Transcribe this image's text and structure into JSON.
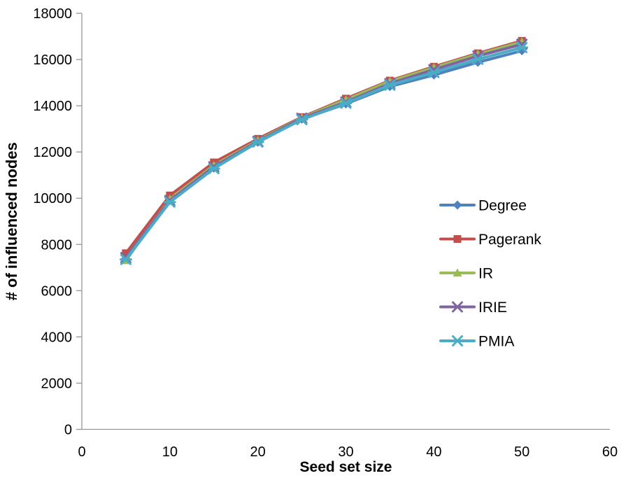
{
  "chart_data": {
    "type": "line",
    "title": "",
    "xlabel": "Seed set size",
    "ylabel": "# of influenced nodes",
    "xlim": [
      0,
      60
    ],
    "ylim": [
      0,
      18000
    ],
    "xticks": [
      0,
      10,
      20,
      30,
      40,
      50,
      60
    ],
    "yticks": [
      0,
      2000,
      4000,
      6000,
      8000,
      10000,
      12000,
      14000,
      16000,
      18000
    ],
    "grid": false,
    "legend_position": "right-middle",
    "x": [
      5,
      10,
      15,
      20,
      25,
      30,
      35,
      40,
      45,
      50
    ],
    "series": [
      {
        "name": "Degree",
        "color": "#4F81BD",
        "marker": "diamond",
        "values": [
          7400,
          9900,
          11300,
          12420,
          13420,
          14080,
          14830,
          15330,
          15880,
          16380
        ]
      },
      {
        "name": "Pagerank",
        "color": "#C0504D",
        "marker": "square",
        "values": [
          7620,
          10120,
          11550,
          12570,
          13510,
          14310,
          15090,
          15690,
          16270,
          16810
        ]
      },
      {
        "name": "IR",
        "color": "#9BBB59",
        "marker": "triangle",
        "values": [
          7300,
          9960,
          11420,
          12500,
          13480,
          14260,
          15060,
          15650,
          16230,
          16760
        ]
      },
      {
        "name": "IRIE",
        "color": "#8064A2",
        "marker": "x",
        "values": [
          7430,
          9900,
          11360,
          12460,
          13460,
          14160,
          14960,
          15560,
          16150,
          16660
        ]
      },
      {
        "name": "PMIA",
        "color": "#4BACC6",
        "marker": "asterisk",
        "values": [
          7350,
          9830,
          11280,
          12430,
          13400,
          14110,
          14890,
          15440,
          16010,
          16520
        ]
      }
    ]
  },
  "colors": {
    "axis": "#969696",
    "text": "#000000",
    "background": "#FFFFFF"
  }
}
